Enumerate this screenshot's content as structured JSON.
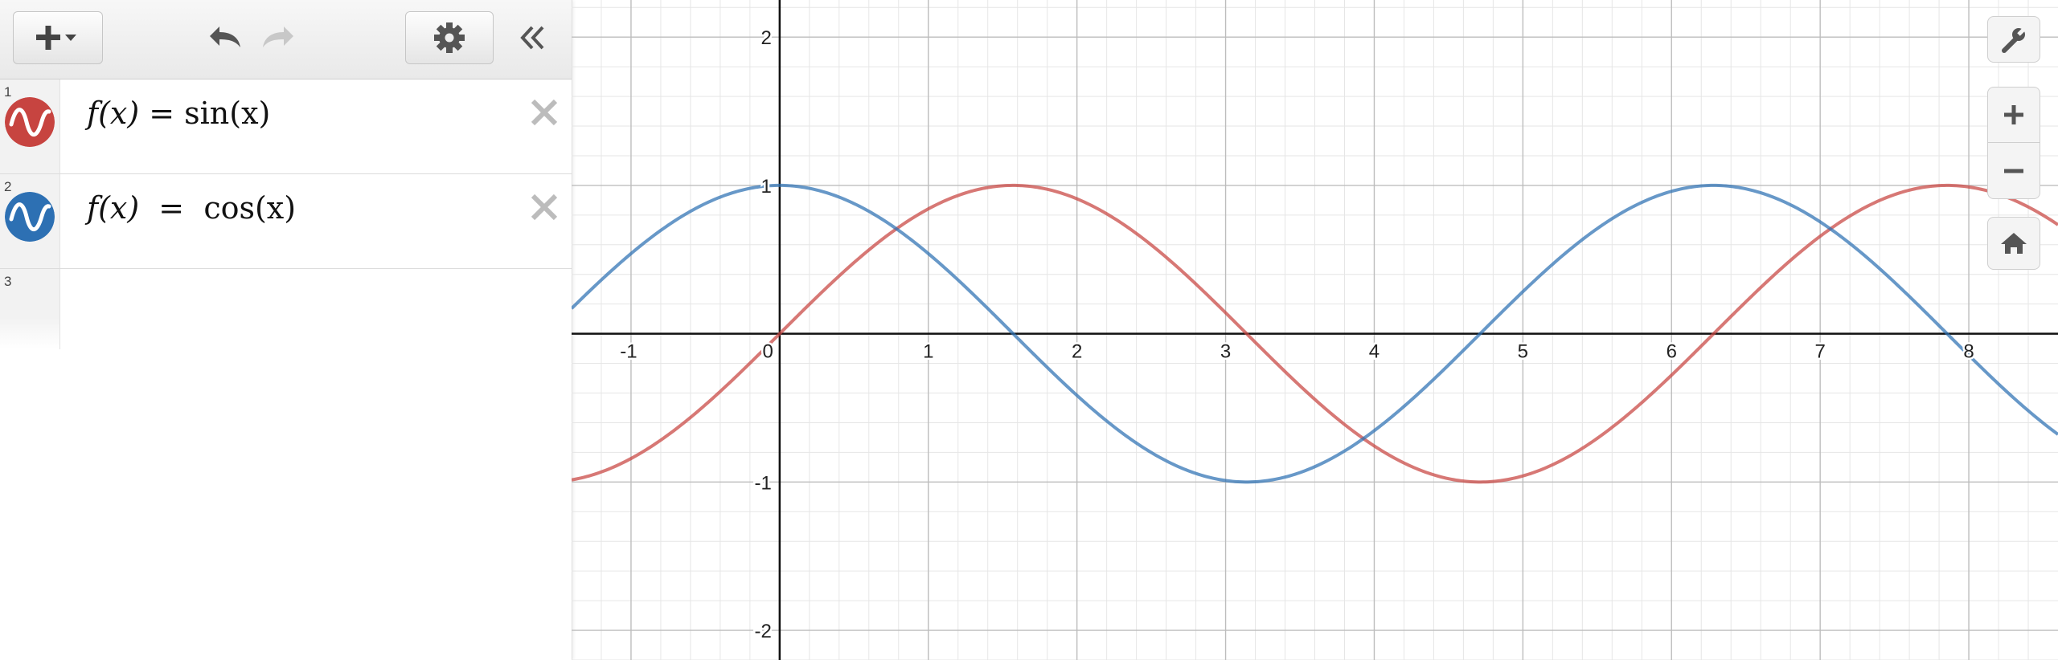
{
  "toolbar": {
    "add_icon": "plus-dropdown-icon",
    "undo_icon": "undo-icon",
    "redo_icon": "redo-icon",
    "settings_icon": "gear-icon",
    "collapse_icon": "double-chevron-left-icon"
  },
  "expressions": [
    {
      "number": "1",
      "lhs": "f(x) = ",
      "rhs": "sin(x)",
      "color": "#c74440",
      "icon": "wave-icon"
    },
    {
      "number": "2",
      "lhs": "f(x)  =  ",
      "rhs": "cos(x)",
      "color": "#2d70b3",
      "icon": "wave-icon"
    },
    {
      "number": "3"
    }
  ],
  "graph_controls": {
    "settings_icon": "wrench-icon",
    "zoom_in_icon": "plus-icon",
    "zoom_out_icon": "minus-icon",
    "home_icon": "home-icon"
  },
  "chart_data": {
    "type": "line",
    "xlim": [
      -1.4,
      8.6
    ],
    "ylim": [
      -2.2,
      2.25
    ],
    "x_ticks": [
      -1,
      0,
      1,
      2,
      3,
      4,
      5,
      6,
      7,
      8
    ],
    "y_ticks": [
      -2,
      -1,
      1,
      2
    ],
    "x_tick_labels": [
      "-1",
      "0",
      "1",
      "2",
      "3",
      "4",
      "5",
      "6",
      "7",
      "8"
    ],
    "y_tick_labels": [
      "-2",
      "-1",
      "1",
      "2"
    ],
    "grid": true,
    "series": [
      {
        "function": "sin(x)",
        "color": "#c74440"
      },
      {
        "function": "cos(x)",
        "color": "#2d70b3"
      }
    ]
  }
}
